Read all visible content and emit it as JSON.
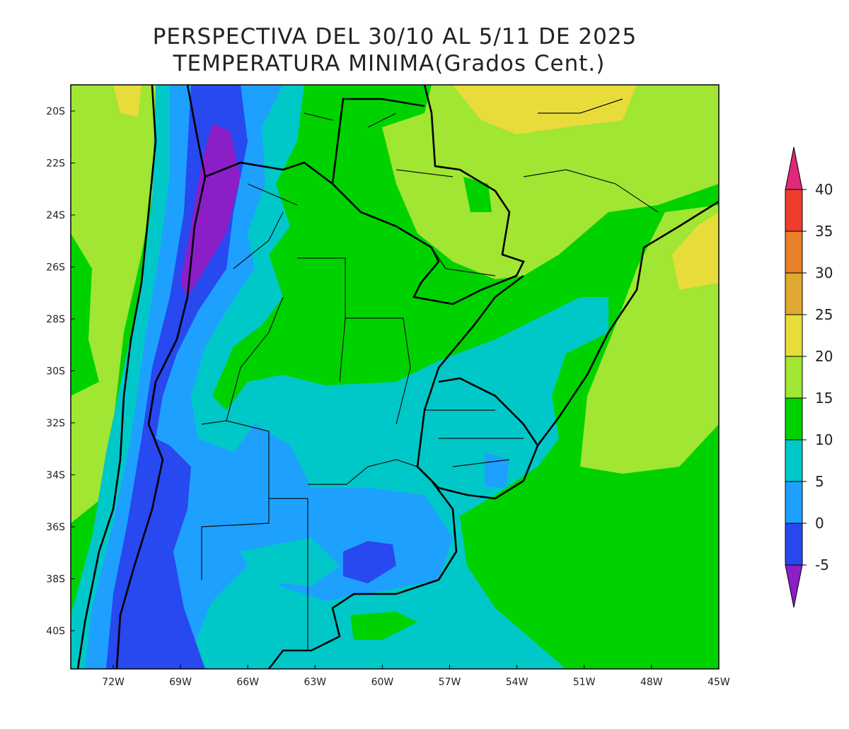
{
  "title": [
    "PERSPECTIVA DEL 30/10 AL 5/11 DE 2025",
    "TEMPERATURA MINIMA(Grados Cent.)"
  ],
  "lat_labels": [
    "20S",
    "22S",
    "24S",
    "26S",
    "28S",
    "30S",
    "32S",
    "34S",
    "36S",
    "38S",
    "40S"
  ],
  "lon_labels": [
    "72W",
    "69W",
    "66W",
    "63W",
    "60W",
    "57W",
    "54W",
    "51W",
    "48W",
    "45W"
  ],
  "colorbar": {
    "levels": [
      -5,
      0,
      5,
      10,
      15,
      20,
      25,
      30,
      35,
      40
    ],
    "colors": [
      "#8c1ec8",
      "#2848f0",
      "#1ea0ff",
      "#00c8c8",
      "#00d200",
      "#a0e632",
      "#e8dc3a",
      "#e0a830",
      "#e8802a",
      "#f03c2c",
      "#e0287a"
    ]
  }
}
